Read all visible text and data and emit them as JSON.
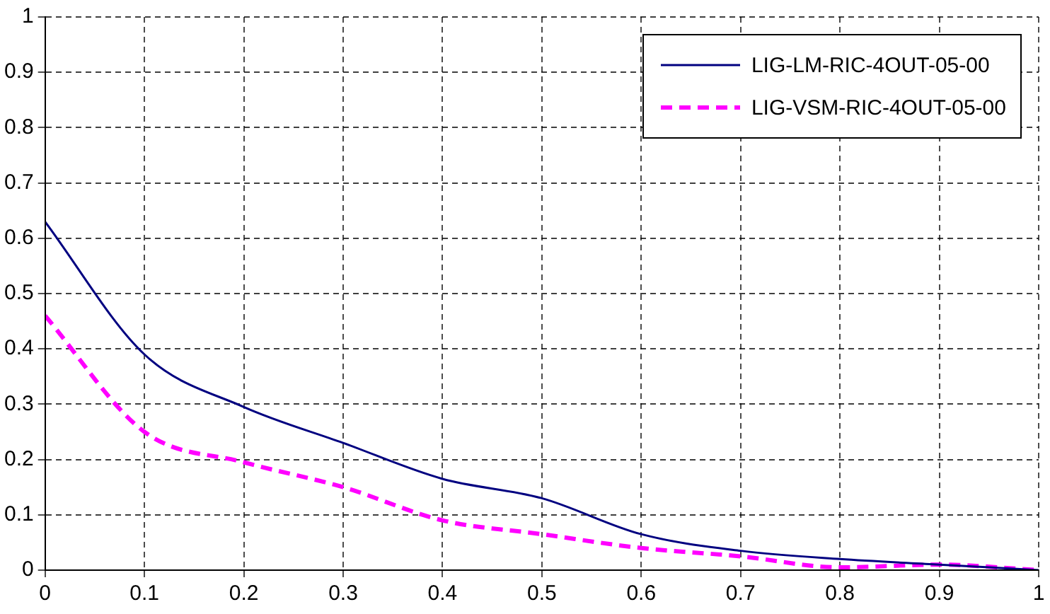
{
  "chart_data": {
    "type": "line",
    "x": [
      0,
      0.1,
      0.2,
      0.3,
      0.4,
      0.5,
      0.6,
      0.7,
      0.8,
      0.9,
      1
    ],
    "series": [
      {
        "name": "LIG-LM-RIC-4OUT-05-00",
        "color": "#000080",
        "line_style": "solid",
        "values": [
          0.63,
          0.39,
          0.295,
          0.23,
          0.165,
          0.13,
          0.065,
          0.035,
          0.02,
          0.01,
          0
        ]
      },
      {
        "name": "LIG-VSM-RIC-4OUT-05-00",
        "color": "#ff00ff",
        "line_style": "dashed",
        "values": [
          0.46,
          0.25,
          0.195,
          0.15,
          0.09,
          0.065,
          0.04,
          0.025,
          0.005,
          0.01,
          0
        ]
      }
    ],
    "xlim": [
      0,
      1
    ],
    "xticks": [
      0,
      0.1,
      0.2,
      0.3,
      0.4,
      0.5,
      0.6,
      0.7,
      0.8,
      0.9,
      1
    ],
    "ylim": [
      0,
      1
    ],
    "yticks": [
      0,
      0.1,
      0.2,
      0.3,
      0.4,
      0.5,
      0.6,
      0.7,
      0.8,
      0.9,
      1
    ],
    "grid": true,
    "legend": "top right",
    "marker": "none"
  }
}
